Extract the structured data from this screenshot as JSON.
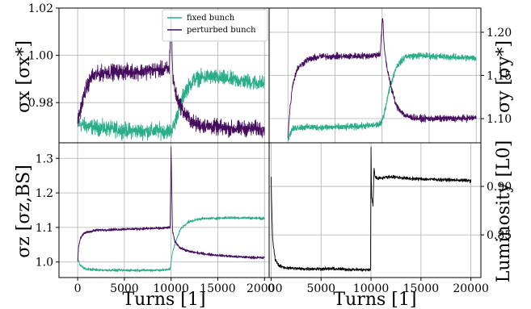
{
  "figure": {
    "legend": {
      "placement": "top-right",
      "entries": [
        "fixed bunch",
        "perturbed bunch"
      ]
    }
  },
  "colors": {
    "fixed": "#2aae8a",
    "perturbed": "#460c5e",
    "luminosity": "#000000",
    "grid": "#b0b0b0"
  },
  "chart_data": [
    {
      "type": "line",
      "panel": "sigma-x",
      "ylabel": "σx [σx*]",
      "xlim": [
        -2000,
        20500
      ],
      "ylim": [
        0.963,
        1.02
      ],
      "yticks": [
        "0.98",
        "1.00",
        "1.02"
      ],
      "ytick_values": [
        0.98,
        1.0,
        1.02
      ],
      "xticks": [],
      "ytick_side": "left",
      "grid": true,
      "noise": {
        "fixed": 0.0035,
        "perturbed": 0.0035
      },
      "series": [
        {
          "name": "fixed bunch",
          "color": "fixed",
          "x": [
            0,
            200,
            1000,
            3000,
            6000,
            9000,
            9950,
            10300,
            10800,
            11500,
            12500,
            14000,
            16000,
            18000,
            20000
          ],
          "y": [
            0.973,
            0.971,
            0.97,
            0.969,
            0.968,
            0.968,
            0.968,
            0.97,
            0.977,
            0.985,
            0.99,
            0.991,
            0.99,
            0.989,
            0.988
          ]
        },
        {
          "name": "perturbed bunch",
          "color": "perturbed",
          "x": [
            0,
            300,
            800,
            1500,
            3000,
            6000,
            9000,
            9800,
            10000,
            10080,
            10200,
            10600,
            11500,
            12500,
            14000,
            16000,
            18000,
            20000
          ],
          "y": [
            0.972,
            0.977,
            0.985,
            0.991,
            0.993,
            0.993,
            0.994,
            0.994,
            1.017,
            1.005,
            0.99,
            0.982,
            0.975,
            0.971,
            0.97,
            0.969,
            0.969,
            0.969
          ]
        }
      ]
    },
    {
      "type": "line",
      "panel": "sigma-y",
      "ylabel": "σy [σy*]",
      "xlim": [
        -2000,
        20500
      ],
      "ylim": [
        1.072,
        1.228
      ],
      "yticks": [
        "1.10",
        "1.15",
        "1.20"
      ],
      "ytick_values": [
        1.1,
        1.15,
        1.2
      ],
      "xticks": [],
      "ytick_side": "right",
      "grid": true,
      "noise": {
        "fixed": 0.004,
        "perturbed": 0.004
      },
      "series": [
        {
          "name": "fixed bunch",
          "color": "fixed",
          "x": [
            0,
            150,
            400,
            1000,
            3000,
            6000,
            9000,
            9900,
            10200,
            10800,
            11500,
            12500,
            14000,
            16000,
            18000,
            20000
          ],
          "y": [
            1.075,
            1.08,
            1.087,
            1.09,
            1.09,
            1.09,
            1.092,
            1.094,
            1.105,
            1.135,
            1.16,
            1.172,
            1.173,
            1.172,
            1.171,
            1.17
          ]
        },
        {
          "name": "perturbed bunch",
          "color": "perturbed",
          "x": [
            0,
            200,
            500,
            1000,
            2000,
            3500,
            6000,
            9000,
            9800,
            10000,
            10080,
            10200,
            10500,
            11000,
            11500,
            12500,
            14000,
            16000,
            18000,
            20000
          ],
          "y": [
            1.08,
            1.11,
            1.14,
            1.158,
            1.168,
            1.172,
            1.172,
            1.173,
            1.175,
            1.21,
            1.218,
            1.185,
            1.16,
            1.135,
            1.115,
            1.103,
            1.1,
            1.1,
            1.1,
            1.101
          ]
        }
      ]
    },
    {
      "type": "line",
      "panel": "sigma-z",
      "ylabel": "σz [σz,BS]",
      "xlabel": "Turns [1]",
      "xlim": [
        -2000,
        20500
      ],
      "ylim": [
        0.955,
        1.345
      ],
      "yticks": [
        "1.0",
        "1.1",
        "1.2",
        "1.3"
      ],
      "ytick_values": [
        1.0,
        1.1,
        1.2,
        1.3
      ],
      "xticks": [
        "0",
        "5000",
        "10000",
        "15000",
        "20000"
      ],
      "xtick_values": [
        0,
        5000,
        10000,
        15000,
        20000
      ],
      "ytick_side": "left",
      "grid": true,
      "noise": {
        "fixed": 0.004,
        "perturbed": 0.004
      },
      "series": [
        {
          "name": "fixed bunch",
          "color": "fixed",
          "x": [
            0,
            300,
            800,
            2000,
            4000,
            7000,
            9500,
            9900,
            10100,
            10500,
            11000,
            11800,
            13000,
            16000,
            18000,
            20000
          ],
          "y": [
            1.01,
            0.99,
            0.98,
            0.977,
            0.976,
            0.976,
            0.977,
            0.98,
            1.02,
            1.06,
            1.095,
            1.115,
            1.125,
            1.128,
            1.128,
            1.126
          ]
        },
        {
          "name": "perturbed bunch",
          "color": "perturbed",
          "x": [
            0,
            100,
            300,
            800,
            2000,
            5000,
            9000,
            9900,
            10000,
            10050,
            10150,
            10400,
            11000,
            12000,
            14000,
            17000,
            20000
          ],
          "y": [
            1.0,
            1.045,
            1.07,
            1.085,
            1.092,
            1.095,
            1.098,
            1.1,
            1.33,
            1.25,
            1.09,
            1.06,
            1.04,
            1.03,
            1.022,
            1.015,
            1.012
          ]
        }
      ]
    },
    {
      "type": "line",
      "panel": "luminosity",
      "ylabel": "Luminosity [L0]",
      "xlabel": "Turns [1]",
      "xlim": [
        -200,
        21000
      ],
      "ylim": [
        0.806,
        0.945
      ],
      "yticks": [
        "0.85",
        "0.90"
      ],
      "ytick_values": [
        0.85,
        0.9
      ],
      "xticks": [
        "0",
        "5000",
        "10000",
        "15000",
        "20000"
      ],
      "xtick_values": [
        0,
        5000,
        10000,
        15000,
        20000
      ],
      "ytick_side": "right",
      "grid": true,
      "noise": {
        "luminosity": 0.0018
      },
      "series": [
        {
          "name": "luminosity",
          "color": "luminosity",
          "x": [
            0,
            30,
            150,
            400,
            800,
            1500,
            3000,
            6000,
            9000,
            9950,
            10000,
            10050,
            10200,
            10300,
            10400,
            10700,
            11000,
            12000,
            14000,
            17000,
            20000
          ],
          "y": [
            0.91,
            0.89,
            0.845,
            0.825,
            0.818,
            0.816,
            0.815,
            0.815,
            0.814,
            0.814,
            0.94,
            0.89,
            0.88,
            0.92,
            0.91,
            0.908,
            0.909,
            0.91,
            0.908,
            0.907,
            0.906
          ]
        }
      ]
    }
  ]
}
